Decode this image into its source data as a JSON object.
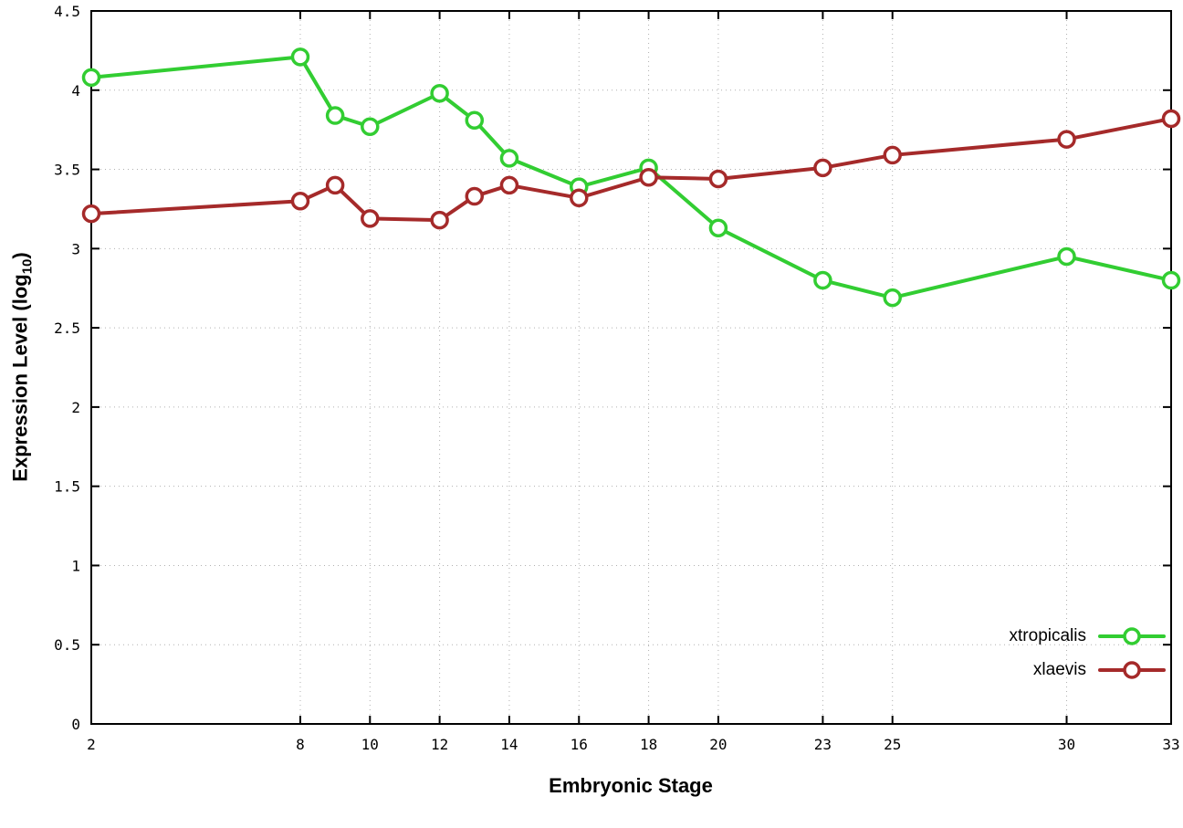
{
  "chart_data": {
    "type": "line",
    "title": "",
    "xlabel": "Embryonic Stage",
    "ylabel": "Expression Level (log10)",
    "ylabel_parts": {
      "prefix": "Expression Level (log",
      "sub": "10",
      "suffix": ")"
    },
    "x_range": [
      2,
      33
    ],
    "y_range": [
      0,
      4.5
    ],
    "x_ticks": [
      2,
      8,
      10,
      12,
      14,
      16,
      18,
      20,
      23,
      25,
      30,
      33
    ],
    "y_ticks": [
      0,
      0.5,
      1,
      1.5,
      2,
      2.5,
      3,
      3.5,
      4,
      4.5
    ],
    "grid": true,
    "legend_position": "bottom-right",
    "marker": "open-circle",
    "series": [
      {
        "name": "xtropicalis",
        "color": "#32cd32",
        "x": [
          2,
          8,
          9,
          10,
          12,
          13,
          14,
          16,
          18,
          20,
          23,
          25,
          30,
          33
        ],
        "values": [
          4.08,
          4.21,
          3.84,
          3.77,
          3.98,
          3.81,
          3.57,
          3.39,
          3.51,
          3.13,
          2.8,
          2.69,
          2.95,
          2.8
        ]
      },
      {
        "name": "xlaevis",
        "color": "#a52a2a",
        "x": [
          2,
          8,
          9,
          10,
          12,
          13,
          14,
          16,
          18,
          20,
          23,
          25,
          30,
          33
        ],
        "values": [
          3.22,
          3.3,
          3.4,
          3.19,
          3.18,
          3.33,
          3.4,
          3.32,
          3.45,
          3.44,
          3.51,
          3.59,
          3.69,
          3.82
        ]
      }
    ]
  }
}
